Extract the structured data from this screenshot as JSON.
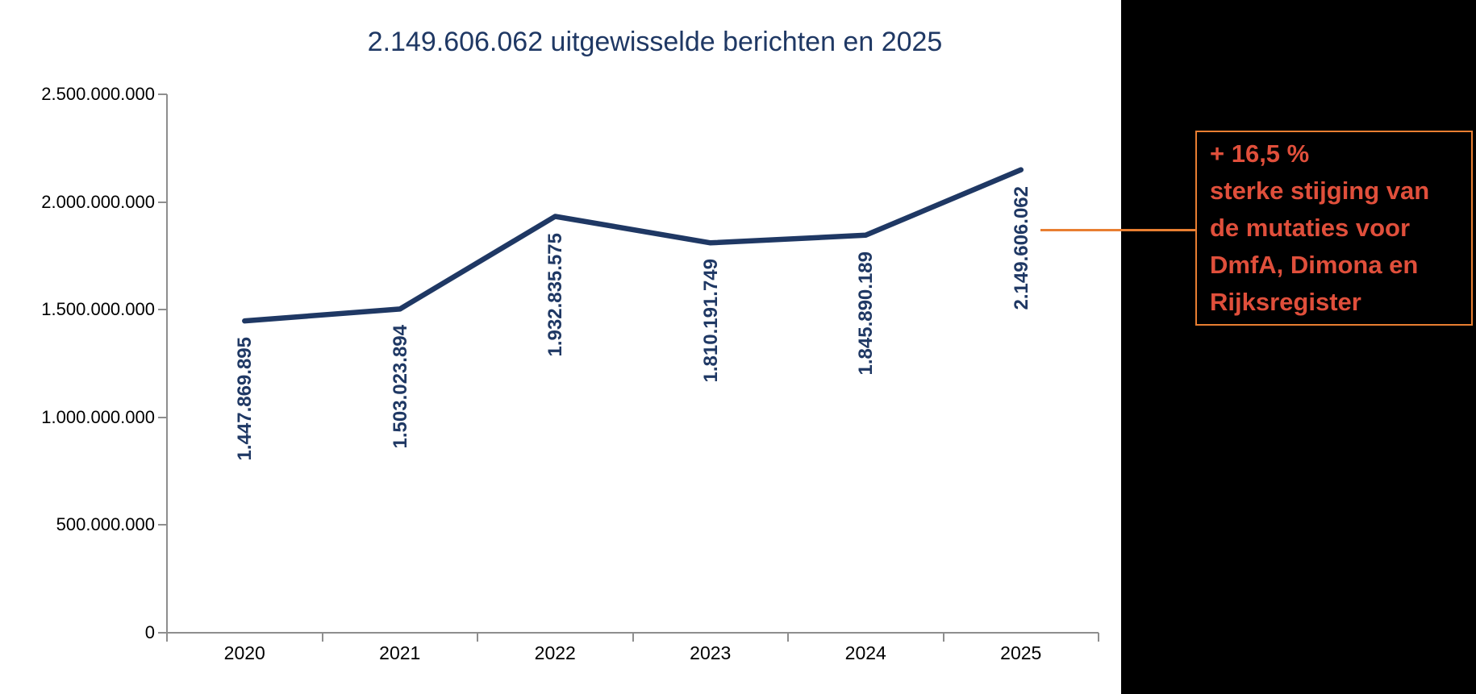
{
  "page": {
    "background_color": "#ffffff",
    "band_color": "#000000"
  },
  "chart_data": {
    "type": "line",
    "title": "2.149.606.062 uitgewisselde berichten en 2025",
    "categories": [
      "2020",
      "2021",
      "2022",
      "2023",
      "2024",
      "2025"
    ],
    "series": [
      {
        "name": "uitgewisselde berichten",
        "values": [
          1447869895,
          1503023894,
          1932835575,
          1810191749,
          1845890189,
          2149606062
        ],
        "value_labels": [
          "1.447.869.895",
          "1.503.023.894",
          "1.932.835.575",
          "1.810.191.749",
          "1.845.890.189",
          "2.149.606.062"
        ]
      }
    ],
    "xlabel": "",
    "ylabel": "",
    "ylim": [
      0,
      2500000000
    ],
    "grid": false,
    "legend": "none",
    "y_ticks": [
      {
        "value": 2500000000,
        "label": "2.500.000.000"
      },
      {
        "value": 2000000000,
        "label": "2.000.000.000"
      },
      {
        "value": 1500000000,
        "label": "1.500.000.000"
      },
      {
        "value": 1000000000,
        "label": "1.000.000.000"
      },
      {
        "value": 500000000,
        "label": "500.000.000"
      },
      {
        "value": 0,
        "label": "0"
      }
    ],
    "colors": {
      "line": "#1F3864",
      "title": "#1F3864",
      "data_label": "#1F3864",
      "axis": "#8E8E8E",
      "tick_label": "#000000"
    }
  },
  "annotation": {
    "lines": [
      "+ 16,5 %",
      "sterke stijging van",
      "de mutaties voor",
      "DmfA, Dimona en",
      "Rijksregister"
    ],
    "text_color": "#E04F3B",
    "border_color": "#E87E31",
    "connector_color": "#E87E31"
  }
}
